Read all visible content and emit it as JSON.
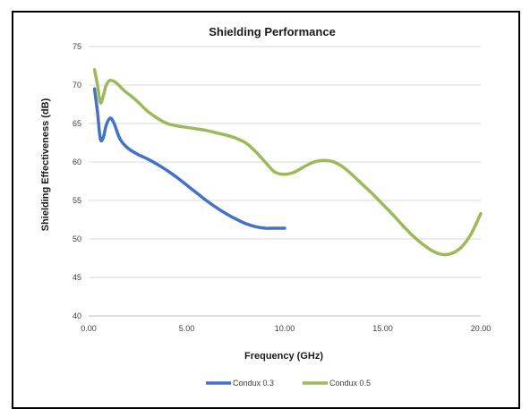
{
  "chart_data": {
    "type": "line",
    "title": "Shielding Performance",
    "xlabel": "Frequency (GHz)",
    "ylabel": "Shielding Effectiveness (dB)",
    "xlim": [
      0,
      20
    ],
    "ylim": [
      40,
      75
    ],
    "xticks": [
      "0.00",
      "5.00",
      "10.00",
      "15.00",
      "20.00"
    ],
    "yticks": [
      "40",
      "45",
      "50",
      "55",
      "60",
      "65",
      "70",
      "75"
    ],
    "grid": true,
    "legend_position": "bottom",
    "series": [
      {
        "name": "Condux 0.3",
        "color": "#4472C4",
        "points": [
          [
            0.3,
            69.5
          ],
          [
            0.45,
            66.5
          ],
          [
            0.6,
            63.0
          ],
          [
            0.75,
            63.2
          ],
          [
            0.9,
            64.8
          ],
          [
            1.1,
            65.7
          ],
          [
            1.3,
            65.0
          ],
          [
            1.6,
            63.0
          ],
          [
            2.0,
            61.8
          ],
          [
            2.5,
            61.0
          ],
          [
            3.0,
            60.4
          ],
          [
            3.5,
            59.7
          ],
          [
            4.0,
            58.9
          ],
          [
            4.5,
            58.0
          ],
          [
            5.0,
            57.0
          ],
          [
            5.5,
            56.0
          ],
          [
            6.0,
            55.0
          ],
          [
            6.5,
            54.1
          ],
          [
            7.0,
            53.3
          ],
          [
            7.5,
            52.6
          ],
          [
            8.0,
            52.0
          ],
          [
            8.5,
            51.6
          ],
          [
            9.0,
            51.4
          ],
          [
            9.5,
            51.4
          ],
          [
            10.0,
            51.4
          ]
        ]
      },
      {
        "name": "Condux 0.5",
        "color": "#9BBB59",
        "points": [
          [
            0.3,
            72.0
          ],
          [
            0.45,
            70.0
          ],
          [
            0.6,
            67.7
          ],
          [
            0.75,
            68.6
          ],
          [
            0.9,
            70.0
          ],
          [
            1.1,
            70.6
          ],
          [
            1.4,
            70.3
          ],
          [
            1.8,
            69.3
          ],
          [
            2.2,
            68.5
          ],
          [
            2.6,
            67.6
          ],
          [
            3.0,
            66.6
          ],
          [
            3.5,
            65.7
          ],
          [
            4.0,
            65.0
          ],
          [
            4.5,
            64.7
          ],
          [
            5.0,
            64.5
          ],
          [
            5.5,
            64.3
          ],
          [
            6.0,
            64.1
          ],
          [
            6.5,
            63.8
          ],
          [
            7.0,
            63.5
          ],
          [
            7.5,
            63.1
          ],
          [
            8.0,
            62.5
          ],
          [
            8.5,
            61.4
          ],
          [
            9.0,
            60.0
          ],
          [
            9.5,
            58.7
          ],
          [
            10.0,
            58.4
          ],
          [
            10.5,
            58.7
          ],
          [
            11.0,
            59.4
          ],
          [
            11.5,
            60.0
          ],
          [
            12.0,
            60.2
          ],
          [
            12.5,
            60.0
          ],
          [
            13.0,
            59.3
          ],
          [
            13.5,
            58.2
          ],
          [
            14.0,
            57.0
          ],
          [
            14.5,
            55.8
          ],
          [
            15.0,
            54.5
          ],
          [
            15.5,
            53.2
          ],
          [
            16.0,
            51.8
          ],
          [
            16.5,
            50.5
          ],
          [
            17.0,
            49.4
          ],
          [
            17.5,
            48.5
          ],
          [
            18.0,
            48.0
          ],
          [
            18.5,
            48.1
          ],
          [
            19.0,
            48.9
          ],
          [
            19.5,
            50.6
          ],
          [
            20.0,
            53.3
          ]
        ]
      }
    ]
  }
}
